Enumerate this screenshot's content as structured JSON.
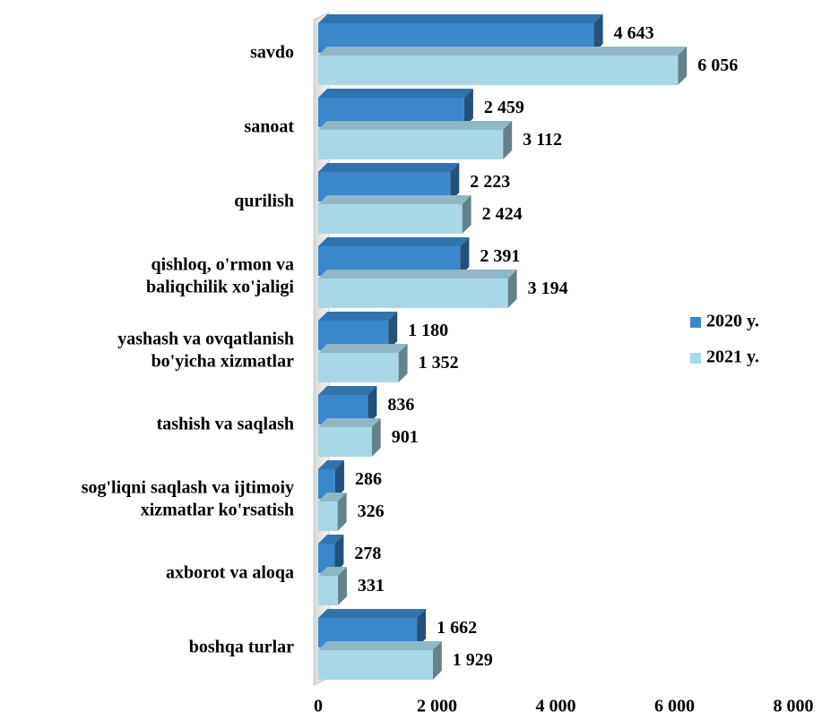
{
  "chart_data": {
    "type": "bar",
    "categories": [
      [
        "savdo"
      ],
      [
        "sanoat"
      ],
      [
        "qurilish"
      ],
      [
        "qishloq, o'rmon va",
        "baliqchilik xo'jaligi"
      ],
      [
        "yashash va ovqatlanish",
        "bo'yicha xizmatlar"
      ],
      [
        "tashish va saqlash"
      ],
      [
        "sog'liqni saqlash va ijtimoiy",
        "xizmatlar ko'rsatish"
      ],
      [
        "axborot va aloqa"
      ],
      [
        "boshqa turlar"
      ]
    ],
    "series": [
      {
        "name": "2020 y.",
        "color": "#3a87cc",
        "values": [
          4643,
          2459,
          2223,
          2391,
          1180,
          836,
          286,
          278,
          1662
        ],
        "value_labels": [
          "4 643",
          "2 459",
          "2 223",
          "2 391",
          "1 180",
          "836",
          "286",
          "278",
          "1 662"
        ]
      },
      {
        "name": "2021 y.",
        "color": "#a8d8e6",
        "values": [
          6056,
          3112,
          2424,
          3194,
          1352,
          901,
          326,
          331,
          1929
        ],
        "value_labels": [
          "6 056",
          "3 112",
          "2 424",
          "3 194",
          "1 352",
          "901",
          "326",
          "331",
          "1 929"
        ]
      }
    ],
    "xlim": [
      0,
      8000
    ],
    "xticks": [
      0,
      {
        "value": 2000,
        "label": "2 000"
      },
      {
        "value": 4000,
        "label": "4 000"
      },
      {
        "value": 6000,
        "label": "6 000"
      },
      {
        "value": 8000,
        "label": "8 000"
      }
    ],
    "legend": "right"
  }
}
